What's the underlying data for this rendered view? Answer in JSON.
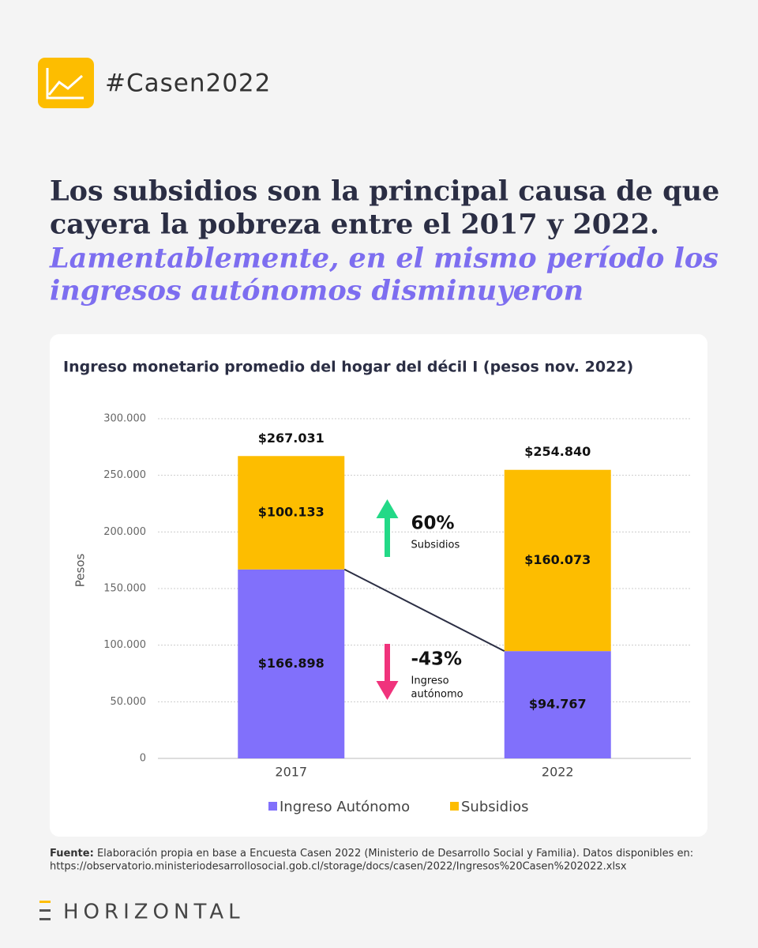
{
  "header": {
    "hashtag": "#Casen2022"
  },
  "headline": {
    "lines": [
      "Los subsidios son la principal causa de que",
      "cayera la pobreza entre el 2017 y 2022."
    ],
    "emphasis": [
      "Lamentablemente, en el mismo período los",
      "ingresos autónomos disminuyeron"
    ]
  },
  "chart_data": {
    "type": "stacked_bar",
    "title": "Ingreso monetario promedio del hogar del décil I (pesos nov. 2022)",
    "y_label": "Pesos",
    "categories": [
      "2017",
      "2022"
    ],
    "series": [
      {
        "name": "Ingreso Autónomo",
        "color": "#8170fb",
        "values": [
          166898,
          94767
        ],
        "value_labels": [
          "$166.898",
          "$94.767"
        ]
      },
      {
        "name": "Subsidios",
        "color": "#fdbd00",
        "values": [
          100133,
          160073
        ],
        "value_labels": [
          "$100.133",
          "$160.073"
        ]
      }
    ],
    "totals": [
      {
        "value": 267031,
        "label": "$267.031"
      },
      {
        "value": 254840,
        "label": "$254.840"
      }
    ],
    "ylim": [
      0,
      300000
    ],
    "yticks": [
      0,
      {
        "value": 50000,
        "label": "50.000"
      },
      {
        "value": 100000,
        "label": "100.000"
      },
      {
        "value": 150000,
        "label": "150.000"
      },
      {
        "value": 200000,
        "label": "200.000"
      },
      {
        "value": 250000,
        "label": "250.000"
      },
      {
        "value": 300000,
        "label": "300.000"
      }
    ],
    "grid": true,
    "legend": "bottom",
    "annotations": [
      {
        "label": "60%",
        "text": [
          "Subsidios"
        ],
        "color": "#23d987"
      },
      {
        "label": "-43%",
        "text": [
          "Ingreso",
          "autónomo"
        ],
        "color": "#f0337c"
      }
    ]
  },
  "source": {
    "label": "Fuente:",
    "text": "Elaboración propia en base a Encuesta Casen 2022 (Ministerio de Desarrollo Social y Familia). Datos disponibles en:",
    "url": "https://observatorio.ministeriodesarrollosocial.gob.cl/storage/docs/casen/2022/Ingresos%20Casen%202022.xlsx"
  },
  "brand": "HORIZONTAL"
}
